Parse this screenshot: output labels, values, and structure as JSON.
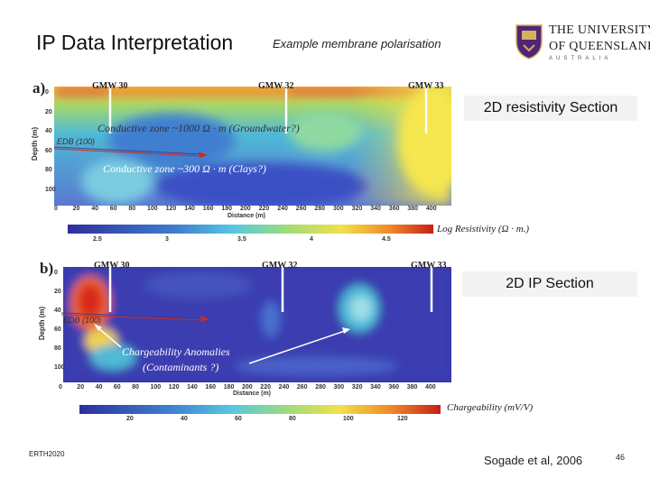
{
  "slide": {
    "title": "IP Data Interpretation",
    "subtitle": "Example membrane polarisation",
    "footer_left": "ERTH2020",
    "citation": "Sogade et al, 2006",
    "page_number": "46"
  },
  "logo": {
    "line1": "THE UNIVERSITY",
    "line2": "OF QUEENSLAND",
    "line3": "AUSTRALIA"
  },
  "panel_a": {
    "label": "a)",
    "section_title": "2D resistivity Section",
    "wells": [
      "GMW 30",
      "GMW  32",
      "GMW 33"
    ],
    "annotation_1": "Conductive zone ~1000 Ω · m (Groundwater?)",
    "annotation_2": "Conductive zone ~300 Ω · m (Clays?)",
    "edb_label": "EDB (100)",
    "depth_axis_title": "Depth (m)",
    "depth_ticks": [
      "0",
      "20",
      "40",
      "60",
      "80",
      "100"
    ],
    "distance_ticks": [
      "0",
      "20",
      "40",
      "60",
      "80",
      "100",
      "120",
      "140",
      "160",
      "180",
      "200",
      "220",
      "240",
      "260",
      "280",
      "300",
      "320",
      "340",
      "360",
      "380",
      "400"
    ],
    "distance_axis_title": "Distance (m)",
    "colorbar_ticks": [
      "2.5",
      "3",
      "3.5",
      "4",
      "4.5"
    ],
    "colorbar_label": "Log Resistivity (Ω · m.)"
  },
  "panel_b": {
    "label": "b)",
    "section_title": "2D IP Section",
    "wells": [
      "GMW 30",
      "GMW  32",
      "GMW 33"
    ],
    "edb_label": "EDB (100)",
    "annotation_line1": "Chargeability Anomalies",
    "annotation_line2": "(Contaminants ?)",
    "depth_axis_title": "Depth (m)",
    "depth_ticks": [
      "0",
      "20",
      "40",
      "60",
      "80",
      "100"
    ],
    "distance_ticks": [
      "0",
      "20",
      "40",
      "60",
      "80",
      "100",
      "120",
      "140",
      "160",
      "180",
      "200",
      "220",
      "240",
      "260",
      "280",
      "300",
      "320",
      "340",
      "360",
      "380",
      "400"
    ],
    "distance_axis_title": "Distance (m)",
    "colorbar_ticks": [
      "20",
      "40",
      "60",
      "80",
      "100",
      "120"
    ],
    "colorbar_label": "Chargeability (mV/V)"
  },
  "colors": {
    "accent_red": "#cc2b1f",
    "water_blue": "#3f7fd0",
    "dark_blue": "#2d2f9e",
    "uq_purple": "#51247a"
  }
}
